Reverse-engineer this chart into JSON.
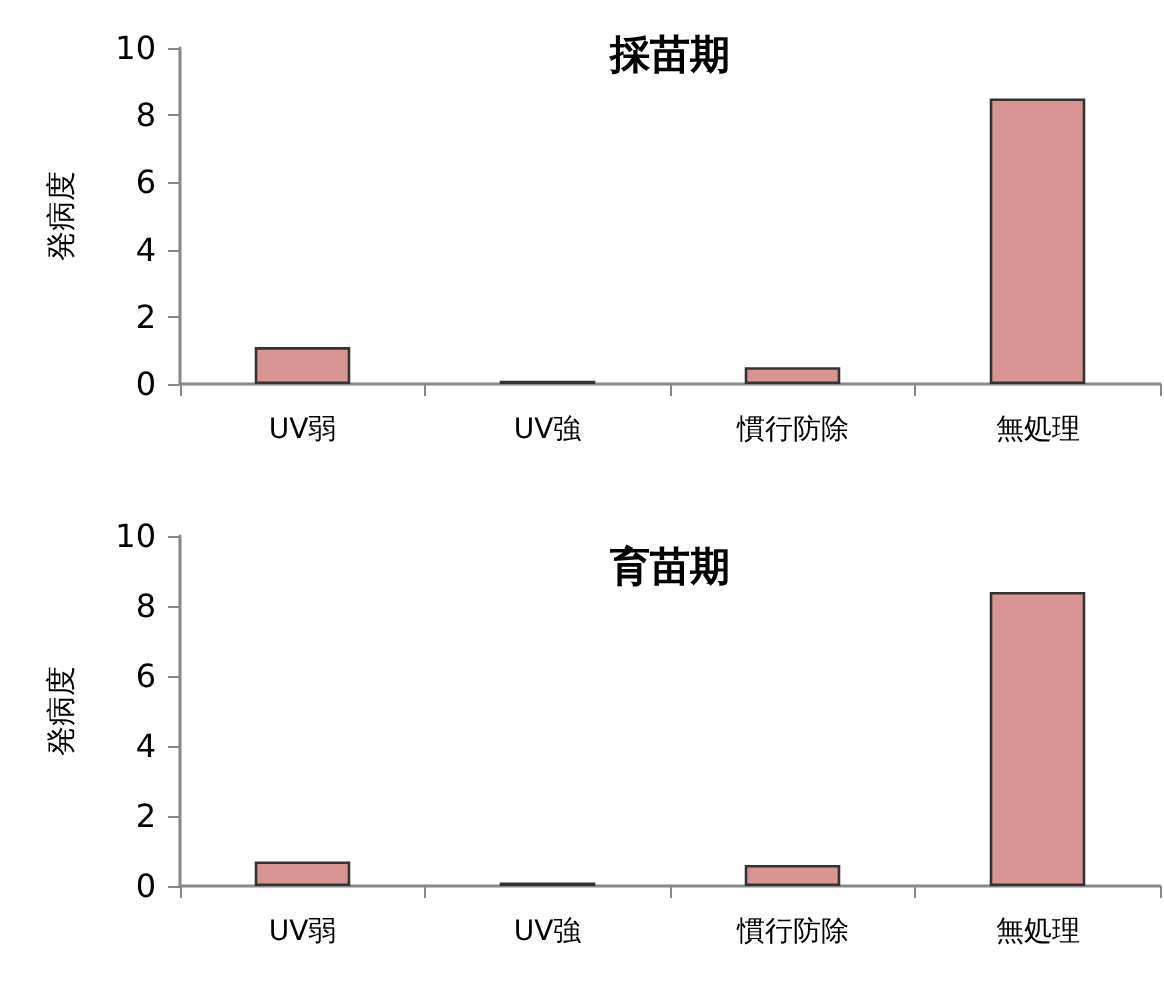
{
  "chart_data": [
    {
      "type": "bar",
      "title": "採苗期",
      "ylabel": "発病度",
      "categories": [
        "UV弱",
        "UV強",
        "慣行防除",
        "無処理"
      ],
      "values": [
        1.1,
        0.1,
        0.5,
        8.5
      ],
      "color": "#d99594",
      "ylim": [
        0,
        10
      ],
      "yticks": [
        0,
        2,
        4,
        6,
        8,
        10
      ],
      "grid": false
    },
    {
      "type": "bar",
      "title": "育苗期",
      "ylabel": "発病度",
      "categories": [
        "UV弱",
        "UV強",
        "慣行防除",
        "無処理"
      ],
      "values": [
        0.7,
        0.1,
        0.6,
        8.4
      ],
      "color": "#d99594",
      "ylim": [
        0,
        10
      ],
      "yticks": [
        0,
        2,
        4,
        6,
        8,
        10
      ],
      "grid": false
    }
  ]
}
